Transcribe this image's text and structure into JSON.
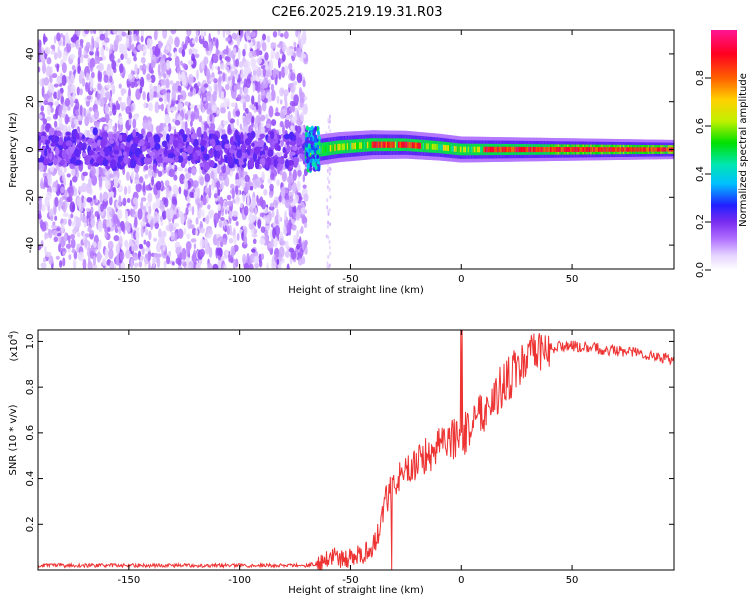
{
  "title": "C2E6.2025.219.19.31.R03",
  "chart_data": [
    {
      "type": "heatmap",
      "xlabel": "Height of straight line (km)",
      "ylabel": "Frequency (Hz)",
      "xlim": [
        -191,
        96
      ],
      "ylim": [
        -50,
        50
      ],
      "xticks": [
        -150,
        -100,
        -50,
        0,
        50
      ],
      "yticks": [
        -40,
        -20,
        0,
        20,
        40
      ],
      "colorbar": {
        "label": "Normalized spectral amplitude",
        "range": [
          0,
          1
        ],
        "ticks": [
          0.0,
          0.2,
          0.4,
          0.6,
          0.8
        ],
        "colormap": [
          "#ffffff",
          "#e6d5ff",
          "#b070ff",
          "#7a2cf0",
          "#2020ff",
          "#00c0ff",
          "#00e6b0",
          "#00e000",
          "#c0f000",
          "#ffd000",
          "#ff6000",
          "#ff0020",
          "#ff1493"
        ]
      },
      "features": {
        "noise_region_x": [
          -191,
          -70
        ],
        "band_center_hz_noise_region": 0,
        "band_half_width_hz_tight": 5,
        "band_center_hz_at_x": [
          [
            -70,
            -1
          ],
          [
            -55,
            1
          ],
          [
            -40,
            2
          ],
          [
            -25,
            2
          ],
          [
            -10,
            1
          ],
          [
            0,
            0
          ],
          [
            25,
            0
          ],
          [
            60,
            0
          ],
          [
            96,
            0
          ]
        ],
        "scatter_at_x": -60
      }
    },
    {
      "type": "line",
      "xlabel": "Height of straight line (km)",
      "ylabel": "SNR (10 * v/v)",
      "y_multiplier": "(x10",
      "y_multiplier_exp": "4",
      "y_multiplier_close": ")",
      "xlim": [
        -191,
        96
      ],
      "ylim": [
        0,
        1.05
      ],
      "xticks": [
        -150,
        -100,
        -50,
        0,
        50
      ],
      "yticks": [
        0.2,
        0.4,
        0.6,
        0.8,
        1.0
      ],
      "series": [
        {
          "color": "#ee3333",
          "x": [
            -191,
            -150,
            -100,
            -70,
            -64,
            -60,
            -55,
            -50,
            -45,
            -40,
            -37,
            -35,
            -30,
            -25,
            -20,
            -15,
            -10,
            -5,
            0,
            5,
            10,
            15,
            20,
            25,
            30,
            35,
            40,
            45,
            50,
            60,
            70,
            80,
            90,
            96
          ],
          "values": [
            0.02,
            0.02,
            0.02,
            0.02,
            0.03,
            0.06,
            0.05,
            0.05,
            0.07,
            0.1,
            0.18,
            0.28,
            0.38,
            0.42,
            0.48,
            0.5,
            0.57,
            0.58,
            0.56,
            0.66,
            0.7,
            0.76,
            0.82,
            0.88,
            0.92,
            0.95,
            0.97,
            0.98,
            0.98,
            0.97,
            0.96,
            0.95,
            0.93,
            0.92
          ]
        }
      ]
    }
  ],
  "icons": {}
}
